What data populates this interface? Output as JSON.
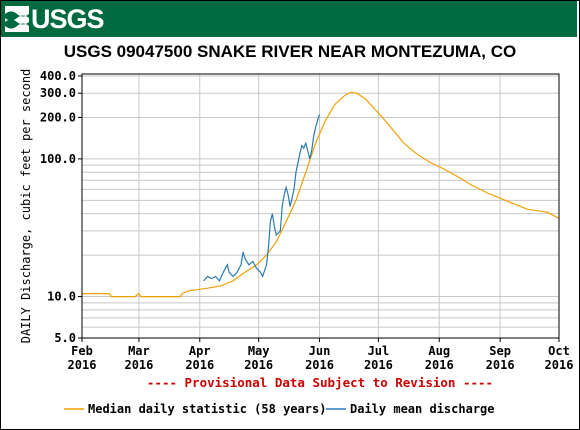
{
  "header": {
    "logo_text": "USGS",
    "logo_icon": "usgs-wave-icon",
    "background_color": "#006a3f"
  },
  "chart_data": {
    "type": "line",
    "title": "USGS 09047500 SNAKE RIVER NEAR MONTEZUMA, CO",
    "ylabel": "DAILY Discharge, cubic feet per second",
    "y_scale": "log",
    "ylim": [
      5.0,
      400.0
    ],
    "y_tick_labels": [
      "5.0",
      "10.0",
      "100.0",
      "200.0",
      "300.0",
      "400.0"
    ],
    "y_tick_values": [
      5,
      10,
      100,
      200,
      300,
      400
    ],
    "xlim": [
      "2016-02-01",
      "2016-10-01"
    ],
    "x_tick_labels": [
      {
        "date": "2016-02-01",
        "month": "Feb",
        "year": "2016"
      },
      {
        "date": "2016-03-01",
        "month": "Mar",
        "year": "2016"
      },
      {
        "date": "2016-04-01",
        "month": "Apr",
        "year": "2016"
      },
      {
        "date": "2016-05-01",
        "month": "May",
        "year": "2016"
      },
      {
        "date": "2016-06-01",
        "month": "Jun",
        "year": "2016"
      },
      {
        "date": "2016-07-01",
        "month": "Jul",
        "year": "2016"
      },
      {
        "date": "2016-08-01",
        "month": "Aug",
        "year": "2016"
      },
      {
        "date": "2016-09-01",
        "month": "Sep",
        "year": "2016"
      },
      {
        "date": "2016-10-01",
        "month": "Oct",
        "year": "2016"
      }
    ],
    "grid": true,
    "annotation": "---- Provisional Data Subject to Revision ----",
    "annotation_color": "#cc0000",
    "legend_position": "bottom",
    "series": [
      {
        "name": "Median daily statistic (58 years)",
        "color": "#f0a000",
        "points": [
          [
            "2016-02-01",
            10.5
          ],
          [
            "2016-02-15",
            10.5
          ],
          [
            "2016-02-16",
            10.0
          ],
          [
            "2016-02-28",
            10.0
          ],
          [
            "2016-03-01",
            10.5
          ],
          [
            "2016-03-02",
            10.0
          ],
          [
            "2016-03-22",
            10.0
          ],
          [
            "2016-03-23",
            10.5
          ],
          [
            "2016-03-26",
            11.0
          ],
          [
            "2016-04-05",
            11.5
          ],
          [
            "2016-04-12",
            12.0
          ],
          [
            "2016-04-18",
            13.0
          ],
          [
            "2016-04-24",
            15.0
          ],
          [
            "2016-04-30",
            17.0
          ],
          [
            "2016-05-05",
            20.0
          ],
          [
            "2016-05-10",
            25.0
          ],
          [
            "2016-05-15",
            35.0
          ],
          [
            "2016-05-20",
            50.0
          ],
          [
            "2016-05-25",
            80.0
          ],
          [
            "2016-05-30",
            130.0
          ],
          [
            "2016-06-04",
            190.0
          ],
          [
            "2016-06-09",
            250.0
          ],
          [
            "2016-06-14",
            290.0
          ],
          [
            "2016-06-17",
            305.0
          ],
          [
            "2016-06-20",
            300.0
          ],
          [
            "2016-06-24",
            275.0
          ],
          [
            "2016-06-28",
            240.0
          ],
          [
            "2016-07-03",
            200.0
          ],
          [
            "2016-07-08",
            165.0
          ],
          [
            "2016-07-14",
            130.0
          ],
          [
            "2016-07-20",
            110.0
          ],
          [
            "2016-07-27",
            95.0
          ],
          [
            "2016-08-03",
            85.0
          ],
          [
            "2016-08-10",
            75.0
          ],
          [
            "2016-08-17",
            65.0
          ],
          [
            "2016-08-25",
            57.0
          ],
          [
            "2016-09-02",
            51.0
          ],
          [
            "2016-09-10",
            46.0
          ],
          [
            "2016-09-15",
            43.0
          ],
          [
            "2016-09-20",
            42.0
          ],
          [
            "2016-09-25",
            41.0
          ],
          [
            "2016-10-01",
            37.0
          ]
        ]
      },
      {
        "name": "Daily mean discharge",
        "color": "#2a7ab5",
        "points": [
          [
            "2016-04-03",
            13.0
          ],
          [
            "2016-04-05",
            14.0
          ],
          [
            "2016-04-07",
            13.5
          ],
          [
            "2016-04-09",
            14.0
          ],
          [
            "2016-04-11",
            13.0
          ],
          [
            "2016-04-13",
            15.0
          ],
          [
            "2016-04-15",
            17.0
          ],
          [
            "2016-04-16",
            15.0
          ],
          [
            "2016-04-18",
            14.0
          ],
          [
            "2016-04-20",
            15.0
          ],
          [
            "2016-04-22",
            17.0
          ],
          [
            "2016-04-23",
            21.0
          ],
          [
            "2016-04-24",
            19.0
          ],
          [
            "2016-04-26",
            17.0
          ],
          [
            "2016-04-28",
            18.0
          ],
          [
            "2016-04-30",
            16.0
          ],
          [
            "2016-05-02",
            15.0
          ],
          [
            "2016-05-03",
            14.0
          ],
          [
            "2016-05-05",
            17.0
          ],
          [
            "2016-05-06",
            23.0
          ],
          [
            "2016-05-07",
            35.0
          ],
          [
            "2016-05-08",
            40.0
          ],
          [
            "2016-05-09",
            32.0
          ],
          [
            "2016-05-10",
            28.0
          ],
          [
            "2016-05-12",
            30.0
          ],
          [
            "2016-05-13",
            45.0
          ],
          [
            "2016-05-14",
            55.0
          ],
          [
            "2016-05-15",
            62.0
          ],
          [
            "2016-05-16",
            55.0
          ],
          [
            "2016-05-17",
            45.0
          ],
          [
            "2016-05-19",
            60.0
          ],
          [
            "2016-05-20",
            80.0
          ],
          [
            "2016-05-22",
            110.0
          ],
          [
            "2016-05-23",
            125.0
          ],
          [
            "2016-05-24",
            120.0
          ],
          [
            "2016-05-25",
            130.0
          ],
          [
            "2016-05-26",
            115.0
          ],
          [
            "2016-05-27",
            100.0
          ],
          [
            "2016-05-28",
            115.0
          ],
          [
            "2016-05-29",
            145.0
          ],
          [
            "2016-05-30",
            170.0
          ],
          [
            "2016-05-31",
            190.0
          ],
          [
            "2016-06-01",
            210.0
          ]
        ]
      }
    ]
  }
}
